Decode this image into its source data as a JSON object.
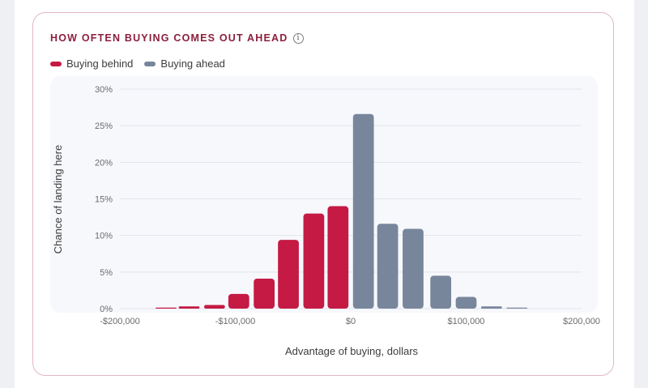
{
  "card": {
    "title": "HOW OFTEN BUYING COMES OUT AHEAD",
    "info_icon": "info-icon"
  },
  "colors": {
    "behind": "#c41a44",
    "ahead": "#78869b",
    "title": "#8c1f3c",
    "plot_bg": "#f7f8fc"
  },
  "chart_data": {
    "type": "bar",
    "xlabel": "Advantage of buying, dollars",
    "ylabel": "Chance of landing here",
    "xlim": [
      -200000,
      200000
    ],
    "ylim": [
      0,
      30
    ],
    "grid": true,
    "legend_position": "top-left",
    "x_ticks": [
      {
        "value": -200000,
        "label": "-$200,000"
      },
      {
        "value": -100000,
        "label": "-$100,000"
      },
      {
        "value": 0,
        "label": "$0"
      },
      {
        "value": 100000,
        "label": "$100,000"
      },
      {
        "value": 200000,
        "label": "$200,000"
      }
    ],
    "y_ticks": [
      {
        "value": 0,
        "label": "0%"
      },
      {
        "value": 5,
        "label": "5%"
      },
      {
        "value": 10,
        "label": "10%"
      },
      {
        "value": 15,
        "label": "15%"
      },
      {
        "value": 20,
        "label": "20%"
      },
      {
        "value": 25,
        "label": "25%"
      },
      {
        "value": 30,
        "label": "30%"
      }
    ],
    "series": [
      {
        "name": "Buying behind",
        "bins": [
          {
            "x": -160000,
            "y": 0.1
          },
          {
            "x": -140000,
            "y": 0.3
          },
          {
            "x": -118000,
            "y": 0.5
          },
          {
            "x": -97000,
            "y": 2.0
          },
          {
            "x": -75000,
            "y": 4.1
          },
          {
            "x": -54000,
            "y": 9.4
          },
          {
            "x": -32000,
            "y": 13.0
          },
          {
            "x": -11000,
            "y": 14.0
          }
        ]
      },
      {
        "name": "Buying ahead",
        "bins": [
          {
            "x": 11000,
            "y": 26.6
          },
          {
            "x": 32000,
            "y": 11.6
          },
          {
            "x": 54000,
            "y": 10.9
          },
          {
            "x": 78000,
            "y": 4.5
          },
          {
            "x": 100000,
            "y": 1.6
          },
          {
            "x": 122000,
            "y": 0.3
          },
          {
            "x": 144000,
            "y": 0.1
          }
        ]
      }
    ]
  }
}
